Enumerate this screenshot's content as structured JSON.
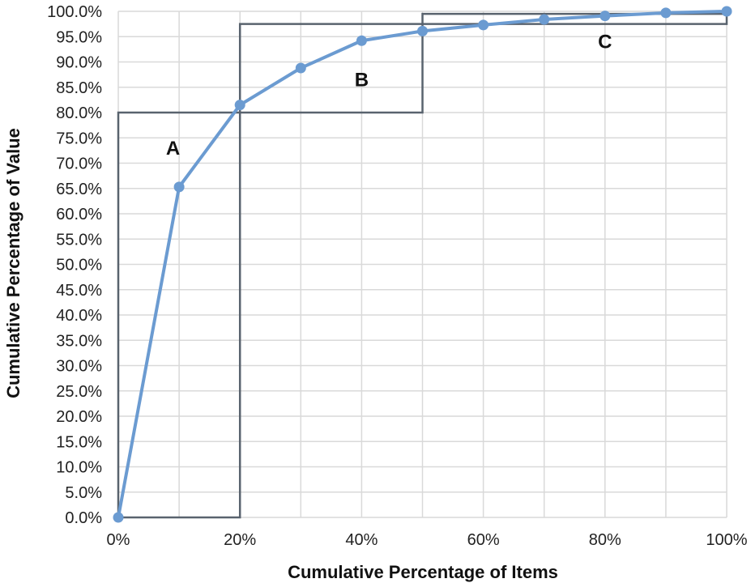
{
  "chart_data": {
    "type": "line",
    "title": "",
    "xlabel": "Cumulative Percentage of Items",
    "ylabel": "Cumulative Percentage of Value",
    "xlim": [
      0,
      100
    ],
    "ylim": [
      0,
      100
    ],
    "x_ticks": [
      0,
      20,
      40,
      60,
      80,
      100
    ],
    "x_tick_labels": [
      "0%",
      "20%",
      "40%",
      "60%",
      "80%",
      "100%"
    ],
    "y_ticks": [
      0,
      5,
      10,
      15,
      20,
      25,
      30,
      35,
      40,
      45,
      50,
      55,
      60,
      65,
      70,
      75,
      80,
      85,
      90,
      95,
      100
    ],
    "y_tick_labels": [
      "0.0%",
      "5.0%",
      "10.0%",
      "15.0%",
      "20.0%",
      "25.0%",
      "30.0%",
      "35.0%",
      "40.0%",
      "45.0%",
      "50.0%",
      "55.0%",
      "60.0%",
      "65.0%",
      "70.0%",
      "75.0%",
      "80.0%",
      "85.0%",
      "90.0%",
      "95.0%",
      "100.0%"
    ],
    "grid": true,
    "series": [
      {
        "x": [
          0,
          10,
          20,
          30,
          40,
          50,
          60,
          70,
          80,
          90,
          100
        ],
        "y": [
          0,
          65.3,
          81.5,
          88.8,
          94.2,
          96.1,
          97.3,
          98.4,
          99.1,
          99.7,
          100
        ]
      }
    ],
    "regions": [
      {
        "label": "A",
        "x": [
          0,
          20
        ],
        "y": [
          0,
          80
        ],
        "label_at": [
          9,
          73
        ]
      },
      {
        "label": "B",
        "x": [
          20,
          50
        ],
        "y": [
          80,
          97.5
        ],
        "label_at": [
          40,
          86.5
        ]
      },
      {
        "label": "C",
        "x": [
          50,
          100
        ],
        "y": [
          97.5,
          99.5
        ],
        "label_at": [
          80,
          94
        ]
      }
    ],
    "colors": {
      "line": "#6b9bd1",
      "grid": "#d9d9d9",
      "region_border": "#59636e"
    }
  }
}
